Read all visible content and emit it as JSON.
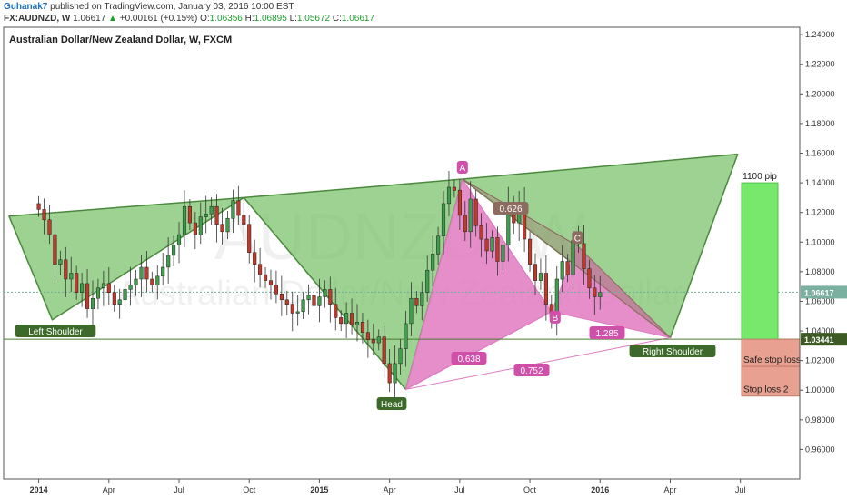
{
  "header": {
    "author": "Guhanak7",
    "published": "published on TradingView.com, January 03, 2016 10:00 EST",
    "symbol": "FX:AUDNZD, W",
    "last": "1.06617",
    "change": "+0.00161 (+0.15%)",
    "open_label": "O:",
    "open": "1.06356",
    "high_label": "H:",
    "high": "1.06895",
    "low_label": "L:",
    "low": "1.05672",
    "close_label": "C:",
    "close": "1.06617",
    "up_arrow": "▲"
  },
  "chart_data": {
    "type": "candlestick",
    "title": "Australian Dollar/New Zealand Dollar, W, FXCM",
    "watermark_symbol": "AUDNZD, W",
    "watermark_name": "Australian Dollar/New Zealand Dollar",
    "y_ticks": [
      "1.24000",
      "1.22000",
      "1.20000",
      "1.18000",
      "1.16000",
      "1.14000",
      "1.12000",
      "1.10000",
      "1.08000",
      "1.06000",
      "1.04000",
      "1.02000",
      "1.00000",
      "0.98000",
      "0.96000"
    ],
    "ylim": [
      0.94,
      1.245
    ],
    "x_ticks": [
      {
        "label": "2014",
        "x": 0
      },
      {
        "label": "Apr",
        "x": 13
      },
      {
        "label": "Jul",
        "x": 26
      },
      {
        "label": "Oct",
        "x": 39
      },
      {
        "label": "2015",
        "x": 52
      },
      {
        "label": "Apr",
        "x": 65
      },
      {
        "label": "Jul",
        "x": 78
      },
      {
        "label": "Oct",
        "x": 91
      },
      {
        "label": "2016",
        "x": 104
      },
      {
        "label": "Apr",
        "x": 117
      },
      {
        "label": "Jul",
        "x": 130
      }
    ],
    "xlim": [
      -6.5,
      141
    ],
    "last_price_label": "1.06617",
    "last_price": 1.06617,
    "support_label": "1.03441",
    "support": 1.03441,
    "closes": [
      1.122,
      1.115,
      1.105,
      1.085,
      1.088,
      1.075,
      1.079,
      1.066,
      1.072,
      1.055,
      1.062,
      1.069,
      1.072,
      1.066,
      1.058,
      1.061,
      1.068,
      1.071,
      1.075,
      1.083,
      1.075,
      1.071,
      1.077,
      1.083,
      1.091,
      1.098,
      1.105,
      1.124,
      1.113,
      1.105,
      1.117,
      1.119,
      1.124,
      1.112,
      1.107,
      1.116,
      1.128,
      1.118,
      1.112,
      1.093,
      1.085,
      1.078,
      1.074,
      1.071,
      1.065,
      1.061,
      1.058,
      1.052,
      1.053,
      1.061,
      1.064,
      1.057,
      1.063,
      1.068,
      1.058,
      1.049,
      1.045,
      1.052,
      1.044,
      1.046,
      1.039,
      1.034,
      1.032,
      1.036,
      1.018,
      1.005,
      1.018,
      1.028,
      1.045,
      1.062,
      1.057,
      1.066,
      1.081,
      1.092,
      1.104,
      1.126,
      1.137,
      1.135,
      1.118,
      1.107,
      1.129,
      1.111,
      1.102,
      1.094,
      1.103,
      1.087,
      1.098,
      1.125,
      1.113,
      1.126,
      1.102,
      1.085,
      1.074,
      1.079,
      1.058,
      1.049,
      1.075,
      1.087,
      1.078,
      1.101,
      1.099,
      1.082,
      1.069,
      1.063,
      1.066
    ],
    "harmonic_pattern": {
      "points": [
        {
          "label": "A",
          "x": 78.5,
          "y": 1.1425
        },
        {
          "label": "B",
          "x": 95,
          "y": 1.053
        },
        {
          "label": "C",
          "x": 99.8,
          "y": 1.0975
        }
      ],
      "start": {
        "x": 68,
        "y": 1.0005
      },
      "end": {
        "x": 117,
        "y": 1.0355
      },
      "ratios": [
        "0.626",
        "0.638",
        "0.752",
        "1.285"
      ]
    },
    "head_shoulders": {
      "labels": [
        "Left Shoulder",
        "Head",
        "Right Shoulder"
      ],
      "neckline": [
        {
          "x": -5.5,
          "y": 1.1175
        },
        {
          "x": 38,
          "y": 1.13
        },
        {
          "x": 78.5,
          "y": 1.1425
        },
        {
          "x": 129.5,
          "y": 1.1593
        }
      ],
      "bottom": [
        {
          "x": -5.5,
          "y": 1.1175
        },
        {
          "x": 2.5,
          "y": 1.0475
        },
        {
          "x": 38,
          "y": 1.13
        },
        {
          "x": 68,
          "y": 1.0005
        },
        {
          "x": 78.5,
          "y": 1.1425
        },
        {
          "x": 117,
          "y": 1.0355
        },
        {
          "x": 129.5,
          "y": 1.1593
        }
      ]
    },
    "target_box": {
      "label": "1100 pip",
      "top": 1.14,
      "bottom": 1.0344
    },
    "stop_boxes": [
      {
        "label": "Safe stop loss",
        "top": 1.0344,
        "bottom": 1.016
      },
      {
        "label": "Stop loss 2",
        "top": 1.016,
        "bottom": 0.996
      }
    ],
    "colors": {
      "green": "#7dc36e",
      "pink": "#e07ac0",
      "up": "#3f9e4d",
      "down": "#c0392b",
      "target": "#77e86c",
      "stop": "#e8a090"
    }
  }
}
